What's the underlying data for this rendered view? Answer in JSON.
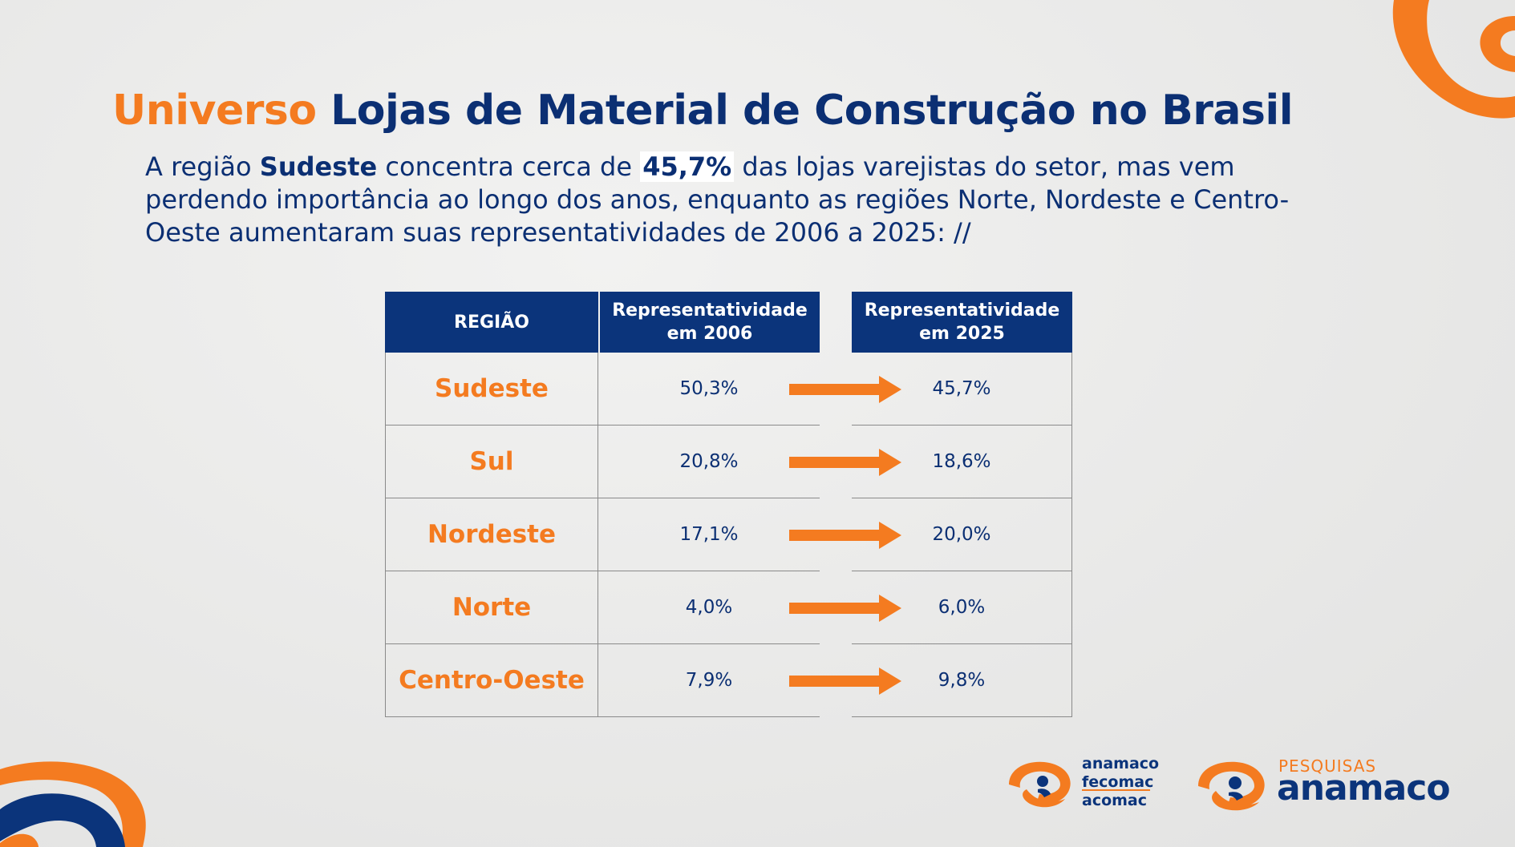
{
  "title": {
    "accent": "Universo",
    "main": "Lojas de Material de Construção no Brasil"
  },
  "intro": {
    "part1": "A região ",
    "bold_region": "Sudeste",
    "part2": " concentra cerca de ",
    "highlight": "45,7%",
    "part3": " das lojas varejistas do setor, mas vem perdendo importância ao longo dos anos, enquanto as regiões Norte, Nordeste e Centro-Oeste aumentaram suas representatividades de 2006 a 2025: //"
  },
  "table": {
    "headers": {
      "region": "REGIÃO",
      "y2006_line1": "Representatividade",
      "y2006_line2": "em 2006",
      "y2025_line1": "Representatividade",
      "y2025_line2": "em 2025"
    },
    "rows": [
      {
        "region": "Sudeste",
        "v2006": "50,3%",
        "v2025": "45,7%"
      },
      {
        "region": "Sul",
        "v2006": "20,8%",
        "v2025": "18,6%"
      },
      {
        "region": "Nordeste",
        "v2006": "17,1%",
        "v2025": "20,0%"
      },
      {
        "region": "Norte",
        "v2006": "4,0%",
        "v2025": "6,0%"
      },
      {
        "region": "Centro-Oeste",
        "v2006": "7,9%",
        "v2025": "9,8%"
      }
    ]
  },
  "logos": {
    "org1_line1": "anamaco",
    "org1_line2": "fecomac",
    "org1_line3": "acomac",
    "org2_top": "PESQUISAS",
    "org2_main": "anamaco"
  },
  "colors": {
    "navy": "#0b2f73",
    "header_navy": "#0b347b",
    "orange": "#f47b20"
  }
}
